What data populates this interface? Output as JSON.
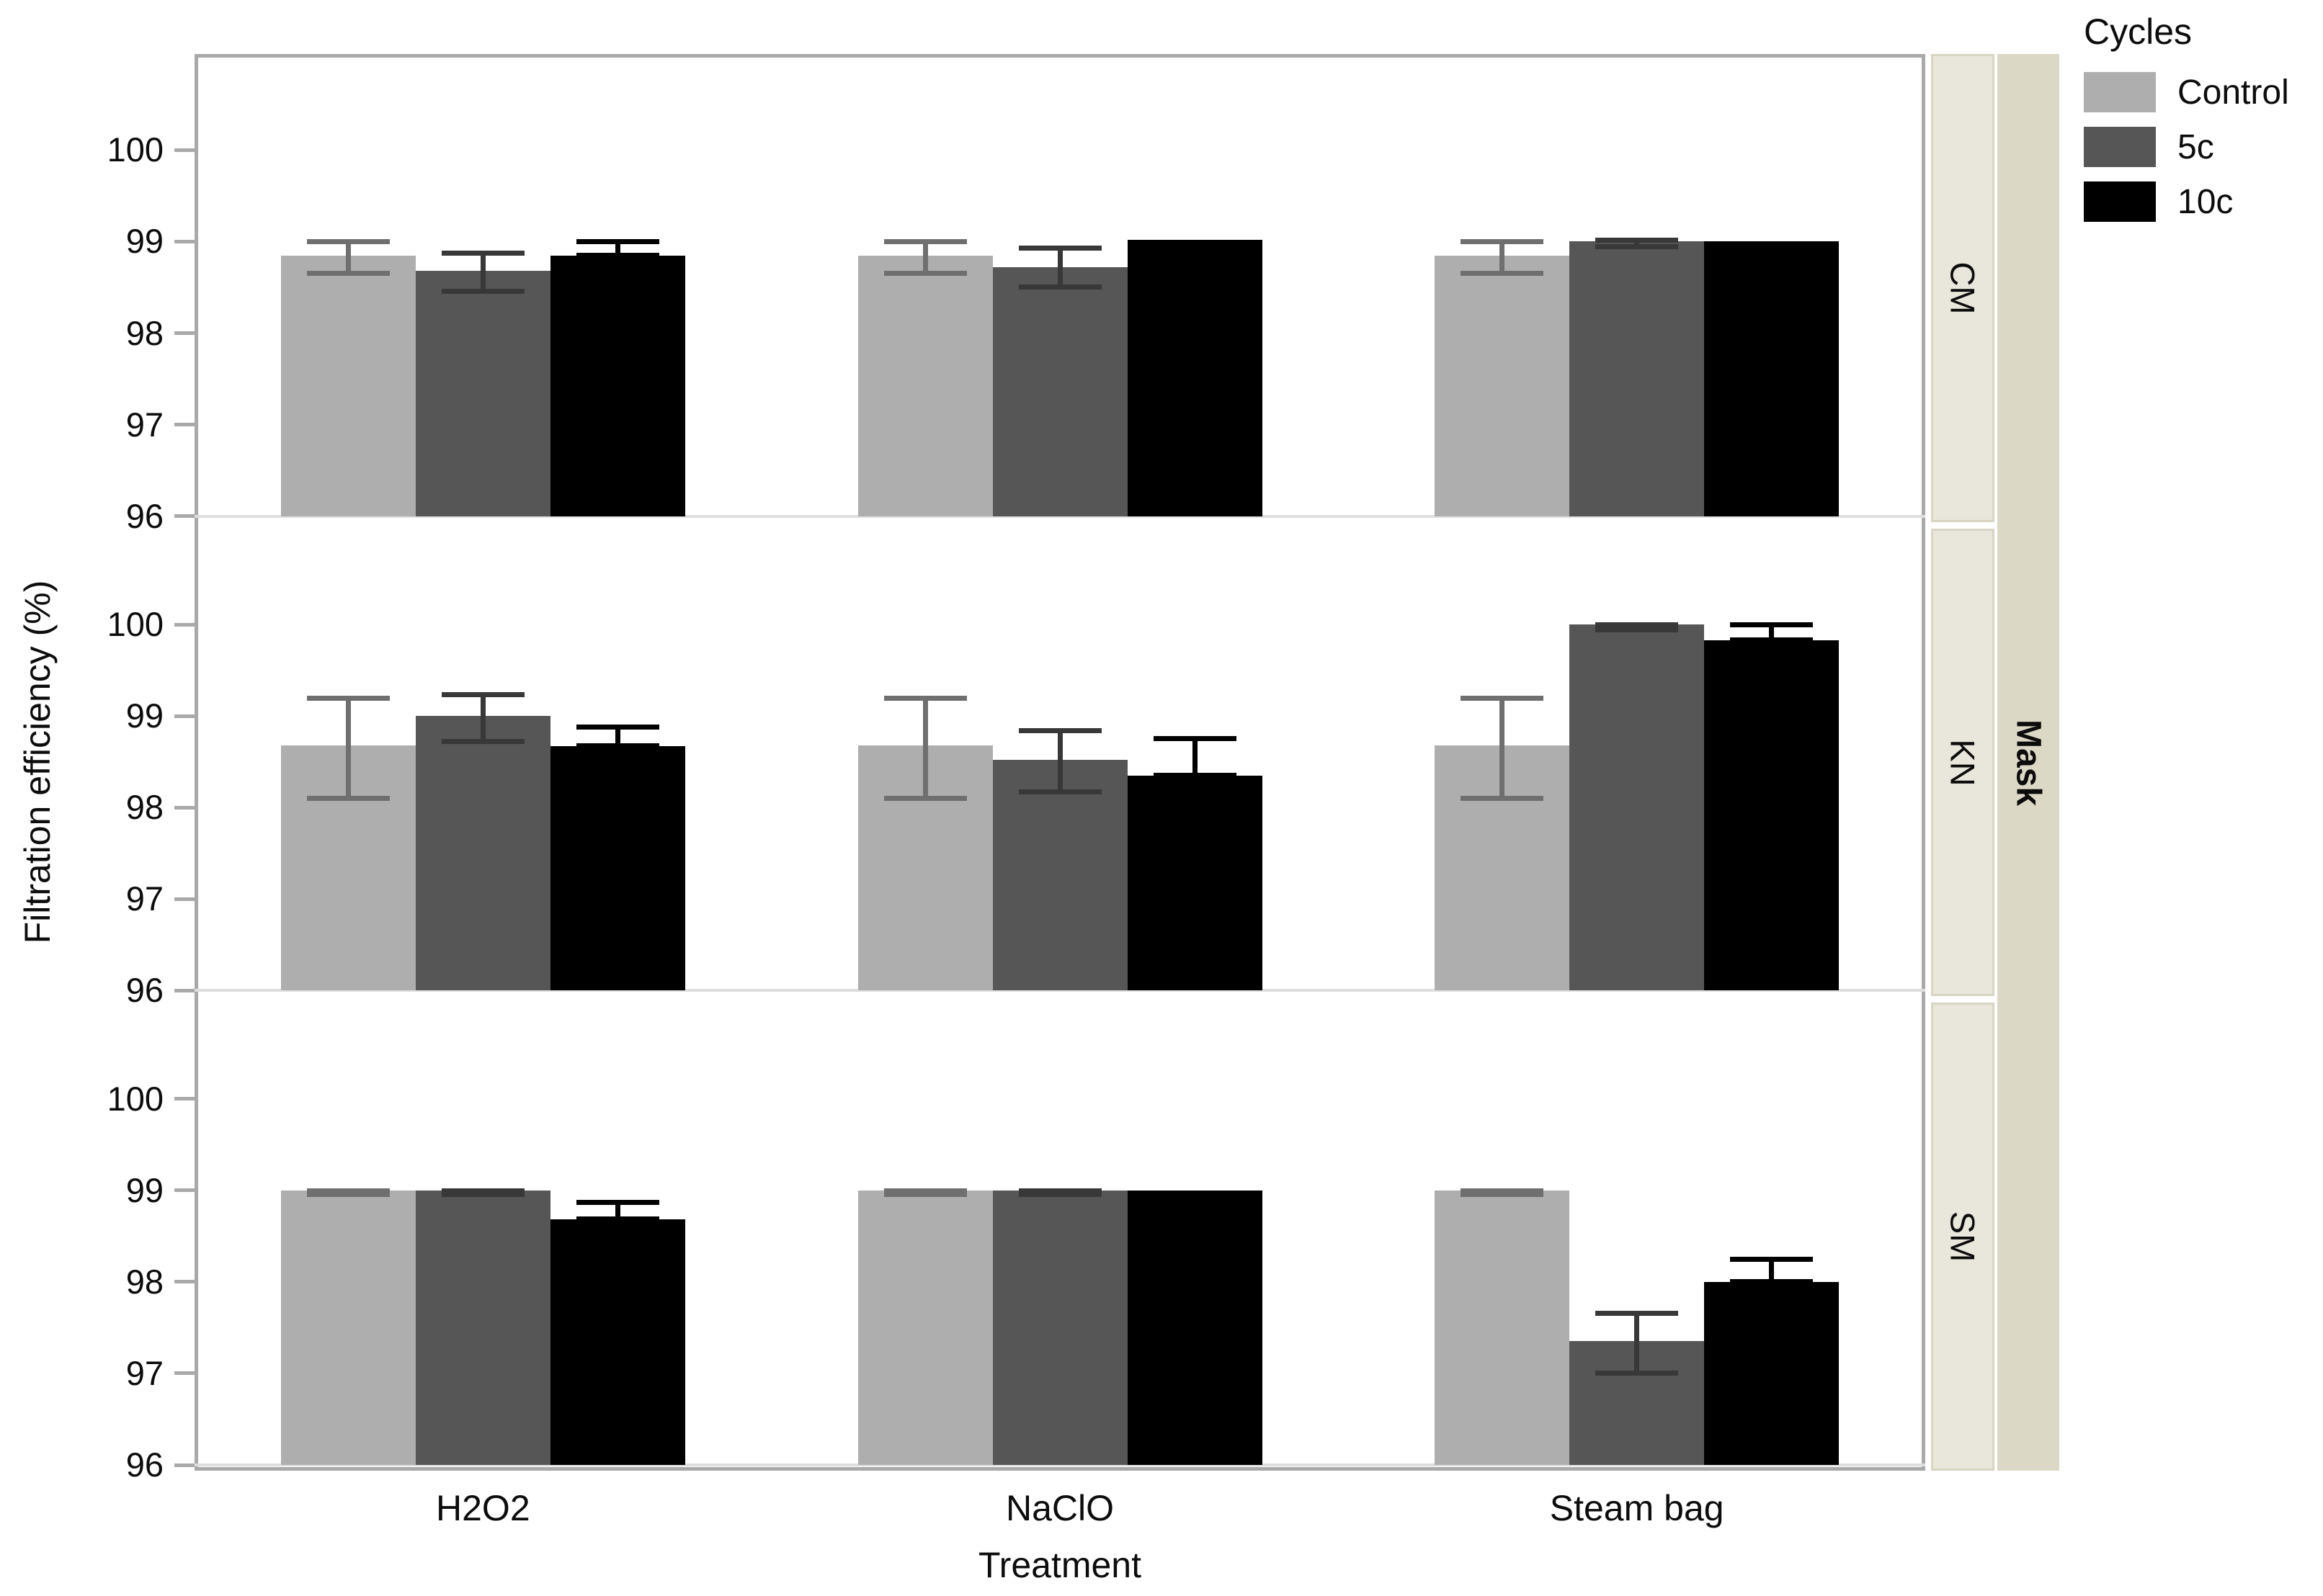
{
  "chart_data": {
    "type": "bar",
    "title": "",
    "xlabel": "Treatment",
    "ylabel": "Filtration efficiency (%)",
    "facet_variable": "Mask",
    "legend": {
      "title": "Cycles",
      "position": "top-right-outside",
      "entries": [
        "Control",
        "5c",
        "10c"
      ]
    },
    "series": [
      "Control",
      "5c",
      "10c"
    ],
    "series_colors": {
      "Control": "#aeaeae",
      "5c": "#565656",
      "10c": "#000000"
    },
    "error_colors": {
      "Control": "#6f6f6f",
      "5c": "#383838",
      "10c": "#000000"
    },
    "categories": [
      "H2O2",
      "NaClO",
      "Steam bag"
    ],
    "ylim": [
      96,
      101.05
    ],
    "yticks": [
      96,
      97,
      98,
      99,
      100
    ],
    "bar_baseline": 96,
    "grid": "off",
    "colors": {
      "panel_border": "#a9a9a9",
      "baseline": "#dedede",
      "strip_fill": "#e9e7db",
      "strip_border": "#d8d5c3",
      "outer_strip_fill": "#dbd8c6",
      "background": "#ffffff"
    },
    "facets": [
      {
        "name": "CM",
        "groups": [
          {
            "category": "H2O2",
            "bars": [
              {
                "series": "Control",
                "value": 98.85,
                "err_lo": 98.65,
                "err_hi": 99.0
              },
              {
                "series": "5c",
                "value": 98.68,
                "err_lo": 98.45,
                "err_hi": 98.88
              },
              {
                "series": "10c",
                "value": 98.85,
                "err_lo": 98.85,
                "err_hi": 99.0
              }
            ]
          },
          {
            "category": "NaClO",
            "bars": [
              {
                "series": "Control",
                "value": 98.85,
                "err_lo": 98.65,
                "err_hi": 99.0
              },
              {
                "series": "5c",
                "value": 98.72,
                "err_lo": 98.5,
                "err_hi": 98.93
              },
              {
                "series": "10c",
                "value": 99.02,
                "err_lo": null,
                "err_hi": null
              }
            ]
          },
          {
            "category": "Steam bag",
            "bars": [
              {
                "series": "Control",
                "value": 98.85,
                "err_lo": 98.65,
                "err_hi": 99.0
              },
              {
                "series": "5c",
                "value": 99.0,
                "err_lo": 98.94,
                "err_hi": 99.02
              },
              {
                "series": "10c",
                "value": 99.0,
                "err_lo": null,
                "err_hi": null
              }
            ]
          }
        ]
      },
      {
        "name": "KN",
        "groups": [
          {
            "category": "H2O2",
            "bars": [
              {
                "series": "Control",
                "value": 98.68,
                "err_lo": 98.1,
                "err_hi": 99.2
              },
              {
                "series": "5c",
                "value": 99.0,
                "err_lo": 98.72,
                "err_hi": 99.24
              },
              {
                "series": "10c",
                "value": 98.67,
                "err_lo": 98.67,
                "err_hi": 98.88
              }
            ]
          },
          {
            "category": "NaClO",
            "bars": [
              {
                "series": "Control",
                "value": 98.68,
                "err_lo": 98.1,
                "err_hi": 99.2
              },
              {
                "series": "5c",
                "value": 98.52,
                "err_lo": 98.17,
                "err_hi": 98.84
              },
              {
                "series": "10c",
                "value": 98.35,
                "err_lo": 98.35,
                "err_hi": 98.76
              }
            ]
          },
          {
            "category": "Steam bag",
            "bars": [
              {
                "series": "Control",
                "value": 98.68,
                "err_lo": 98.1,
                "err_hi": 99.2
              },
              {
                "series": "5c",
                "value": 100.0,
                "err_lo": 99.94,
                "err_hi": 100.0
              },
              {
                "series": "10c",
                "value": 99.83,
                "err_lo": 99.83,
                "err_hi": 100.0
              }
            ]
          }
        ]
      },
      {
        "name": "SM",
        "groups": [
          {
            "category": "H2O2",
            "bars": [
              {
                "series": "Control",
                "value": 99.0,
                "err_lo": 98.95,
                "err_hi": 99.0
              },
              {
                "series": "5c",
                "value": 99.0,
                "err_lo": 98.95,
                "err_hi": 99.0
              },
              {
                "series": "10c",
                "value": 98.68,
                "err_lo": 98.68,
                "err_hi": 98.87
              }
            ]
          },
          {
            "category": "NaClO",
            "bars": [
              {
                "series": "Control",
                "value": 99.0,
                "err_lo": 98.95,
                "err_hi": 99.0
              },
              {
                "series": "5c",
                "value": 99.0,
                "err_lo": 98.95,
                "err_hi": 99.0
              },
              {
                "series": "10c",
                "value": 99.0,
                "err_lo": null,
                "err_hi": null
              }
            ]
          },
          {
            "category": "Steam bag",
            "bars": [
              {
                "series": "Control",
                "value": 99.0,
                "err_lo": 98.95,
                "err_hi": 99.0
              },
              {
                "series": "5c",
                "value": 97.35,
                "err_lo": 97.0,
                "err_hi": 97.66
              },
              {
                "series": "10c",
                "value": 98.0,
                "err_lo": 98.0,
                "err_hi": 98.25
              }
            ]
          }
        ]
      }
    ]
  }
}
